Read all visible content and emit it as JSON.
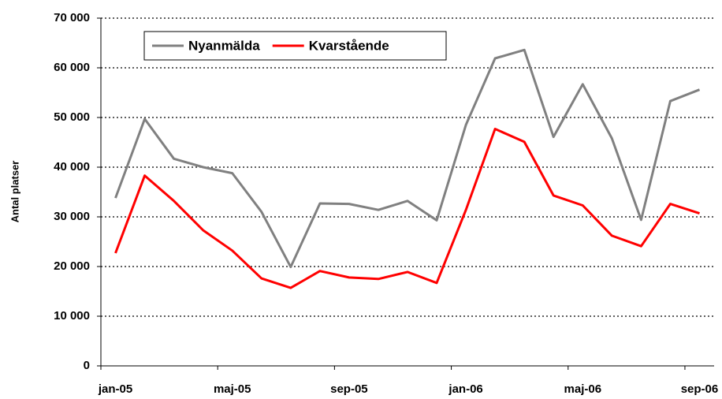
{
  "chart_data": {
    "type": "line",
    "y_label": "Antal platser",
    "categories": [
      "jan-05",
      null,
      null,
      null,
      "maj-05",
      null,
      null,
      null,
      "sep-05",
      null,
      null,
      null,
      "jan-06",
      null,
      null,
      null,
      "maj-06",
      null,
      null,
      null,
      "sep-06"
    ],
    "series": [
      {
        "name": "Nyanmälda",
        "color": "#808080",
        "values": [
          33800,
          49700,
          41700,
          40000,
          38800,
          31000,
          19900,
          32700,
          32600,
          31400,
          33200,
          29300,
          48500,
          61900,
          63600,
          46100,
          56700,
          45800,
          29400,
          53300,
          55600
        ]
      },
      {
        "name": "Kvarstående",
        "color": "#ff0000",
        "values": [
          22700,
          38300,
          33200,
          27300,
          23200,
          17600,
          15700,
          19100,
          17800,
          17500,
          18900,
          16700,
          31400,
          47700,
          45100,
          34300,
          32300,
          26200,
          24100,
          32600,
          30700
        ]
      }
    ],
    "ylim": [
      0,
      70000
    ],
    "yticks": [
      0,
      {
        "value": 10000,
        "label": "10 000"
      },
      {
        "value": 20000,
        "label": "20 000"
      },
      {
        "value": 30000,
        "label": "30 000"
      },
      {
        "value": 40000,
        "label": "40 000"
      },
      {
        "value": 50000,
        "label": "50 000"
      },
      {
        "value": 60000,
        "label": "60 000"
      },
      {
        "value": 70000,
        "label": "70 000"
      }
    ],
    "grid": true,
    "legend": "upper left"
  }
}
